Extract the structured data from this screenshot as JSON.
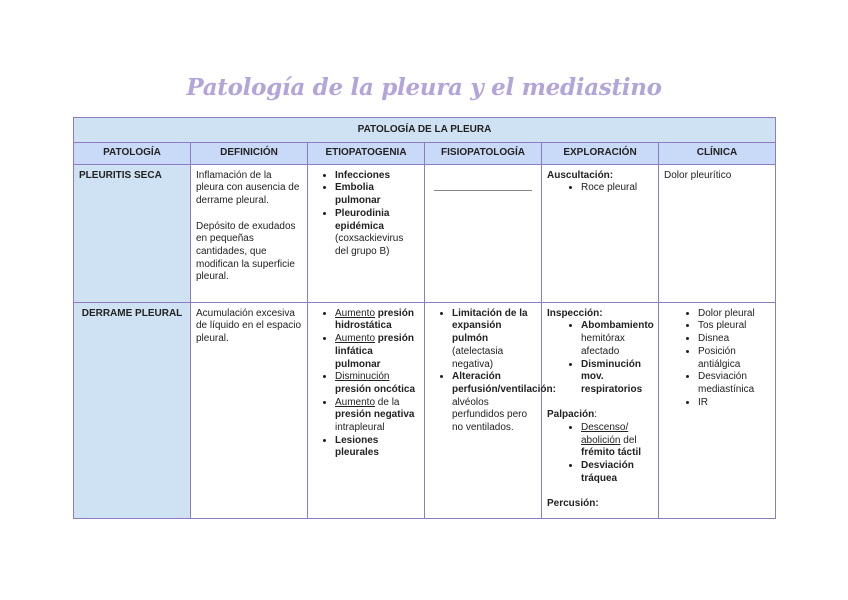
{
  "title": "Patología de la pleura y el mediastino",
  "table": {
    "section_title": "PATOLOGÍA DE LA PLEURA",
    "headers": [
      "PATOLOGÍA",
      "DEFINICIÓN",
      "ETIOPATOGENIA",
      "FISIOPATOLOGÍA",
      "EXPLORACIÓN",
      "CLÍNICA"
    ],
    "rows": [
      {
        "name": "PLEURITIS SECA",
        "cells": [
          [
            {
              "type": "p",
              "segs": [
                {
                  "t": "Inflamación de la pleura con ausencia de derrame pleural."
                }
              ]
            },
            {
              "type": "p",
              "segs": [
                {
                  "t": "Depósito de exudados en pequeñas cantidades, que modifican la superficie pleural."
                }
              ]
            }
          ],
          [
            {
              "type": "ul",
              "items": [
                [
                  {
                    "t": "Infecciones",
                    "b": true
                  }
                ],
                [
                  {
                    "t": "Embolia pulmonar",
                    "b": true
                  }
                ],
                [
                  {
                    "t": "Pleurodinia epidémica",
                    "b": true
                  },
                  {
                    "t": " (coxsackievirus del grupo B)"
                  }
                ]
              ]
            }
          ],
          [
            {
              "type": "hr"
            }
          ],
          [
            {
              "type": "label",
              "segs": [
                {
                  "t": "Auscultación:",
                  "b": true
                }
              ]
            },
            {
              "type": "ul",
              "ind": true,
              "items": [
                [
                  {
                    "t": "Roce pleural"
                  }
                ]
              ]
            }
          ],
          [
            {
              "type": "p",
              "segs": [
                {
                  "t": "Dolor pleurítico"
                }
              ]
            }
          ]
        ]
      },
      {
        "name": "DERRAME PLEURAL",
        "cells": [
          [
            {
              "type": "p",
              "segs": [
                {
                  "t": "Acumulación excesiva de líquido en el espacio pleural."
                }
              ]
            }
          ],
          [
            {
              "type": "ul",
              "items": [
                [
                  {
                    "t": "Aumento",
                    "u": true
                  },
                  {
                    "t": " presión hidrostática",
                    "b": true
                  }
                ],
                [
                  {
                    "t": "Aumento",
                    "u": true
                  },
                  {
                    "t": " presión linfática pulmonar",
                    "b": true
                  }
                ],
                [
                  {
                    "t": "Disminución",
                    "u": true
                  },
                  {
                    "t": " presión oncótica",
                    "b": true
                  }
                ],
                [
                  {
                    "t": "Aumento",
                    "u": true
                  },
                  {
                    "t": " de la "
                  },
                  {
                    "t": "presión negativa",
                    "b": true
                  },
                  {
                    "t": " intrapleural"
                  }
                ],
                [
                  {
                    "t": "Lesiones pleurales",
                    "b": true
                  }
                ]
              ]
            }
          ],
          [
            {
              "type": "ul",
              "items": [
                [
                  {
                    "t": "Limitación de la expansión pulmón",
                    "b": true
                  },
                  {
                    "t": " (atelectasia negativa)"
                  }
                ],
                [
                  {
                    "t": "Alteración perfusión/ventilación:",
                    "b": true
                  },
                  {
                    "t": " alvéolos perfundidos pero no ventilados."
                  }
                ]
              ]
            }
          ],
          [
            {
              "type": "label",
              "segs": [
                {
                  "t": "Inspección:",
                  "b": true
                }
              ]
            },
            {
              "type": "ul",
              "ind": true,
              "items": [
                [
                  {
                    "t": "Abombamiento",
                    "b": true
                  },
                  {
                    "t": " hemitórax afectado"
                  }
                ],
                [
                  {
                    "t": "Disminución mov. respiratorios",
                    "b": true
                  }
                ]
              ]
            },
            {
              "type": "gap"
            },
            {
              "type": "label",
              "segs": [
                {
                  "t": "Palpación",
                  "b": true
                },
                {
                  "t": ":"
                }
              ]
            },
            {
              "type": "ul",
              "ind": true,
              "items": [
                [
                  {
                    "t": "Descenso/ abolición",
                    "u": true
                  },
                  {
                    "t": " del "
                  },
                  {
                    "t": "frémito táctil",
                    "b": true
                  }
                ],
                [
                  {
                    "t": "Desviación tráquea",
                    "b": true
                  }
                ]
              ]
            },
            {
              "type": "gap"
            },
            {
              "type": "label",
              "segs": [
                {
                  "t": "Percusión:",
                  "b": true
                }
              ]
            }
          ],
          [
            {
              "type": "ul",
              "ind": true,
              "items": [
                [
                  {
                    "t": "Dolor pleural"
                  }
                ],
                [
                  {
                    "t": "Tos pleural"
                  }
                ],
                [
                  {
                    "t": "Disnea"
                  }
                ],
                [
                  {
                    "t": "Posición antiálgica"
                  }
                ],
                [
                  {
                    "t": "Desviación mediastínica"
                  }
                ],
                [
                  {
                    "t": "IR"
                  }
                ]
              ]
            }
          ]
        ]
      }
    ]
  }
}
